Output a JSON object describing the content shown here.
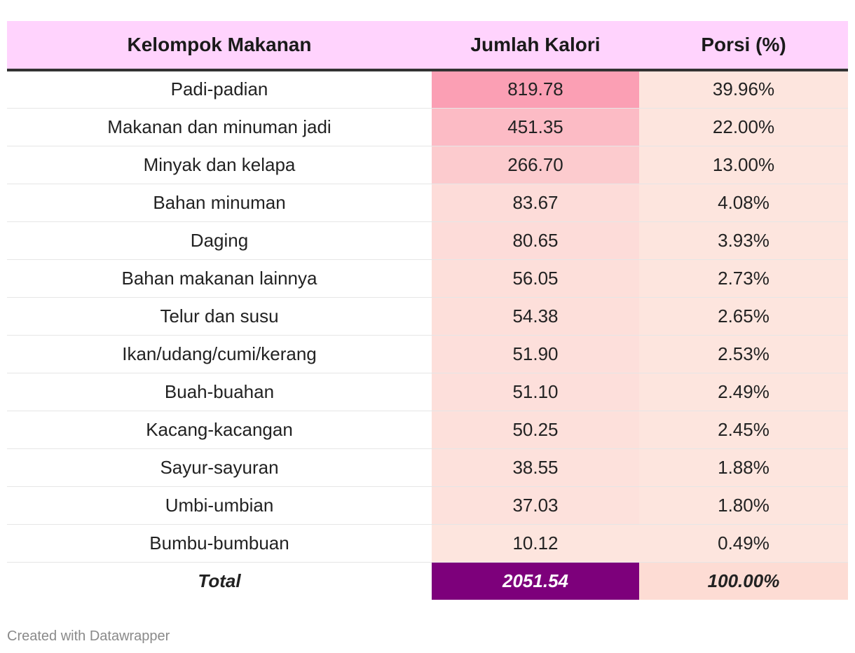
{
  "chart_data": {
    "type": "table",
    "columns": [
      "Kelompok Makanan",
      "Jumlah Kalori",
      "Porsi (%)"
    ],
    "rows": [
      {
        "kelompok": "Padi-padian",
        "kalori": "819.78",
        "porsi": "39.96%",
        "value": 819.78
      },
      {
        "kelompok": "Makanan dan minuman jadi",
        "kalori": "451.35",
        "porsi": "22.00%",
        "value": 451.35
      },
      {
        "kelompok": "Minyak dan kelapa",
        "kalori": "266.70",
        "porsi": "13.00%",
        "value": 266.7
      },
      {
        "kelompok": "Bahan minuman",
        "kalori": "83.67",
        "porsi": "4.08%",
        "value": 83.67
      },
      {
        "kelompok": "Daging",
        "kalori": "80.65",
        "porsi": "3.93%",
        "value": 80.65
      },
      {
        "kelompok": "Bahan makanan lainnya",
        "kalori": "56.05",
        "porsi": "2.73%",
        "value": 56.05
      },
      {
        "kelompok": "Telur dan susu",
        "kalori": "54.38",
        "porsi": "2.65%",
        "value": 54.38
      },
      {
        "kelompok": "Ikan/udang/cumi/kerang",
        "kalori": "51.90",
        "porsi": "2.53%",
        "value": 51.9
      },
      {
        "kelompok": "Buah-buahan",
        "kalori": "51.10",
        "porsi": "2.49%",
        "value": 51.1
      },
      {
        "kelompok": "Kacang-kacangan",
        "kalori": "50.25",
        "porsi": "2.45%",
        "value": 50.25
      },
      {
        "kelompok": "Sayur-sayuran",
        "kalori": "38.55",
        "porsi": "1.88%",
        "value": 38.55
      },
      {
        "kelompok": "Umbi-umbian",
        "kalori": "37.03",
        "porsi": "1.80%",
        "value": 37.03
      },
      {
        "kelompok": "Bumbu-bumbuan",
        "kalori": "10.12",
        "porsi": "0.49%",
        "value": 10.12
      }
    ],
    "total": {
      "kelompok": "Total",
      "kalori": "2051.54",
      "porsi": "100.00%"
    }
  },
  "colors": {
    "header_bg": "#ffd3fd",
    "heat_low": "#fde5de",
    "heat_high": "#fb9fb4",
    "total_kalori_bg": "#7d007b",
    "porsi_bg": "#fde5de"
  },
  "footer": "Created with Datawrapper"
}
